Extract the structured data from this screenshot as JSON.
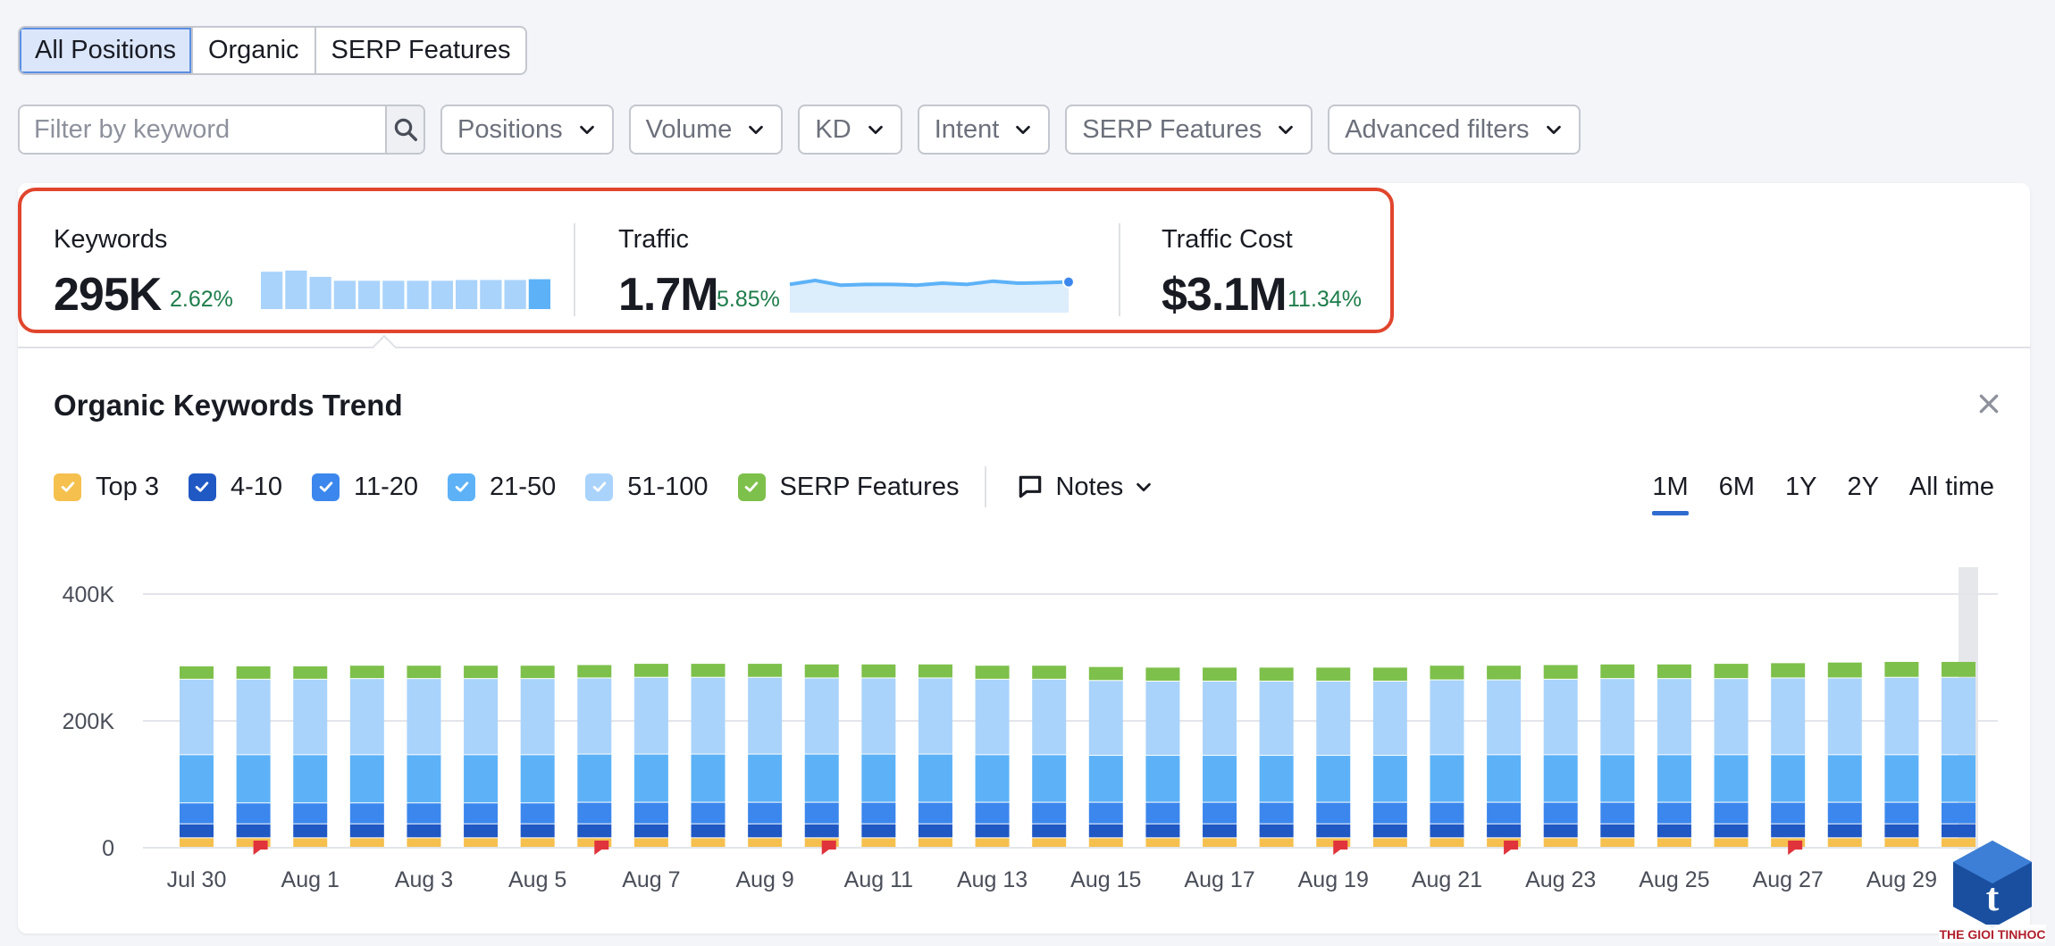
{
  "tabs": [
    {
      "label": "All Positions",
      "active": true
    },
    {
      "label": "Organic",
      "active": false
    },
    {
      "label": "SERP Features",
      "active": false
    }
  ],
  "filters": {
    "search_placeholder": "Filter by keyword",
    "dropdowns": [
      "Positions",
      "Volume",
      "KD",
      "Intent",
      "SERP Features",
      "Advanced filters"
    ]
  },
  "summary": {
    "keywords": {
      "label": "Keywords",
      "value": "295K",
      "delta": "2.62%",
      "spark_bars": [
        0.95,
        0.98,
        0.82,
        0.72,
        0.72,
        0.72,
        0.72,
        0.72,
        0.74,
        0.74,
        0.74,
        0.76
      ],
      "highlight_last": true
    },
    "traffic": {
      "label": "Traffic",
      "value": "1.7M",
      "delta": "5.85%",
      "spark_line": [
        0.72,
        0.82,
        0.7,
        0.72,
        0.72,
        0.7,
        0.75,
        0.72,
        0.8,
        0.75,
        0.76,
        0.78
      ]
    },
    "traffic_cost": {
      "label": "Traffic Cost",
      "value": "$3.1M",
      "delta": "11.34%"
    }
  },
  "trend": {
    "title": "Organic Keywords Trend",
    "legend": [
      {
        "label": "Top 3",
        "color": "#f5c04e"
      },
      {
        "label": "4-10",
        "color": "#2059c4"
      },
      {
        "label": "11-20",
        "color": "#3c87ed"
      },
      {
        "label": "21-50",
        "color": "#5db2f7"
      },
      {
        "label": "51-100",
        "color": "#a9d3fb"
      },
      {
        "label": "SERP Features",
        "color": "#7dc04b"
      }
    ],
    "notes_label": "Notes",
    "periods": [
      {
        "label": "1M",
        "active": true
      },
      {
        "label": "6M",
        "active": false
      },
      {
        "label": "1Y",
        "active": false
      },
      {
        "label": "2Y",
        "active": false
      },
      {
        "label": "All time",
        "active": false
      }
    ]
  },
  "chart_data": {
    "type": "bar",
    "stacked": true,
    "y_ticks": [
      "400K",
      "200K",
      "0"
    ],
    "ylim": [
      0,
      400000
    ],
    "x_tick_labels": [
      "Jul 30",
      "Aug 1",
      "Aug 3",
      "Aug 5",
      "Aug 7",
      "Aug 9",
      "Aug 11",
      "Aug 13",
      "Aug 15",
      "Aug 17",
      "Aug 19",
      "Aug 21",
      "Aug 23",
      "Aug 25",
      "Aug 27",
      "Aug 29"
    ],
    "categories": [
      "Jul 30",
      "Jul 31",
      "Aug 1",
      "Aug 2",
      "Aug 3",
      "Aug 4",
      "Aug 5",
      "Aug 6",
      "Aug 7",
      "Aug 8",
      "Aug 9",
      "Aug 10",
      "Aug 11",
      "Aug 12",
      "Aug 13",
      "Aug 14",
      "Aug 15",
      "Aug 16",
      "Aug 17",
      "Aug 18",
      "Aug 19",
      "Aug 20",
      "Aug 21",
      "Aug 22",
      "Aug 23",
      "Aug 24",
      "Aug 25",
      "Aug 26",
      "Aug 27",
      "Aug 28",
      "Aug 29",
      "Aug 30"
    ],
    "series": [
      {
        "name": "Top 3",
        "color": "#f5c04e",
        "values": [
          15000,
          15000,
          15000,
          15000,
          15000,
          15000,
          15000,
          15000,
          15000,
          15000,
          15000,
          15000,
          15000,
          15000,
          15000,
          15000,
          15000,
          15000,
          15000,
          15000,
          15000,
          15000,
          15000,
          15000,
          15000,
          15000,
          15000,
          15000,
          15000,
          15000,
          15000,
          15000
        ]
      },
      {
        "name": "4-10",
        "color": "#2059c4",
        "values": [
          22000,
          22000,
          22000,
          22000,
          22000,
          22000,
          22000,
          22000,
          22000,
          22000,
          22000,
          22000,
          22000,
          22000,
          22000,
          22000,
          22000,
          22000,
          22000,
          22000,
          22000,
          22000,
          22000,
          22000,
          22000,
          22000,
          22000,
          22000,
          22000,
          22000,
          22000,
          22000
        ]
      },
      {
        "name": "11-20",
        "color": "#3c87ed",
        "values": [
          33000,
          33000,
          33000,
          33000,
          33000,
          33000,
          33000,
          34000,
          34000,
          34000,
          34000,
          34000,
          34000,
          34000,
          34000,
          34000,
          34000,
          34000,
          34000,
          34000,
          34000,
          34000,
          34000,
          34000,
          34000,
          34000,
          34000,
          34000,
          34000,
          34000,
          34000,
          34000
        ]
      },
      {
        "name": "21-50",
        "color": "#5db2f7",
        "values": [
          76000,
          76000,
          76000,
          76000,
          76000,
          76000,
          76000,
          76000,
          76000,
          76000,
          76000,
          76000,
          76000,
          76000,
          75000,
          75000,
          74000,
          74000,
          74000,
          74000,
          74000,
          74000,
          75000,
          75000,
          75000,
          75000,
          75000,
          75000,
          75000,
          75000,
          75000,
          75000
        ]
      },
      {
        "name": "51-100",
        "color": "#a9d3fb",
        "values": [
          119000,
          119000,
          119000,
          120000,
          120000,
          120000,
          120000,
          120000,
          121000,
          121000,
          121000,
          120000,
          120000,
          120000,
          119000,
          119000,
          118000,
          117000,
          117000,
          117000,
          117000,
          117000,
          118000,
          118000,
          119000,
          120000,
          120000,
          120000,
          121000,
          121000,
          122000,
          122000
        ]
      },
      {
        "name": "SERP Features",
        "color": "#7dc04b",
        "values": [
          21000,
          21000,
          21000,
          21000,
          21000,
          21000,
          21000,
          21000,
          22000,
          22000,
          22000,
          22000,
          22000,
          22000,
          22000,
          22000,
          22000,
          22000,
          22000,
          22000,
          22000,
          22000,
          23000,
          23000,
          23000,
          23000,
          23000,
          24000,
          24000,
          25000,
          25000,
          25000
        ]
      }
    ],
    "note_markers": [
      "Jul 31",
      "Aug 6",
      "Aug 10",
      "Aug 19",
      "Aug 22",
      "Aug 27"
    ],
    "highlighted_category": "Aug 30"
  }
}
